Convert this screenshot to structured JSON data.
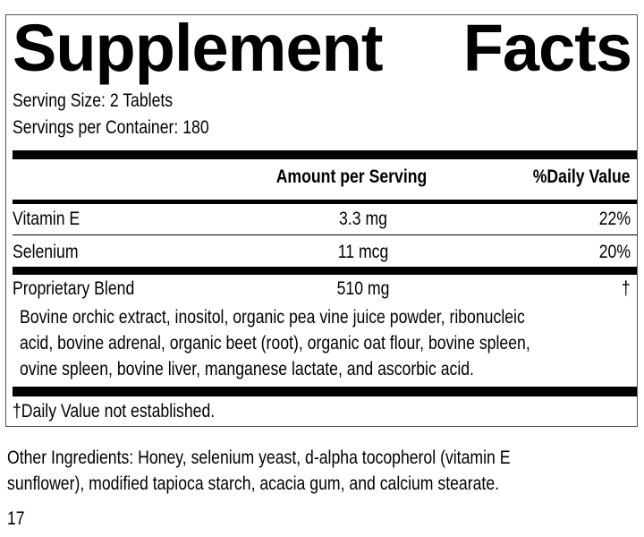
{
  "panel": {
    "title_words": [
      "Supplement",
      "Facts"
    ],
    "serving_size": "Serving Size: 2 Tablets",
    "servings_per_container": "Servings per Container: 180",
    "header": {
      "amount": "Amount per Serving",
      "daily_value": "%Daily Value"
    },
    "rows": [
      {
        "name": "Vitamin E",
        "amount": "3.3 mg",
        "dv": "22%"
      },
      {
        "name": "Selenium",
        "amount": "11 mcg",
        "dv": "20%"
      },
      {
        "name": "Proprietary Blend",
        "amount": "510 mg",
        "dv": "†"
      }
    ],
    "blend_lines": [
      "Bovine orchic extract, inositol, organic pea vine juice powder, ribonucleic",
      "acid, bovine adrenal, organic beet (root), organic oat flour, bovine spleen,",
      "ovine spleen, bovine liver, manganese lactate, and ascorbic acid."
    ],
    "footnote": "†Daily Value not established."
  },
  "other_ingredients": [
    "Other Ingredients: Honey, selenium yeast, d-alpha tocopherol (vitamin E",
    "sunflower), modified tapioca starch, acacia gum, and calcium stearate."
  ],
  "page_number": "17"
}
